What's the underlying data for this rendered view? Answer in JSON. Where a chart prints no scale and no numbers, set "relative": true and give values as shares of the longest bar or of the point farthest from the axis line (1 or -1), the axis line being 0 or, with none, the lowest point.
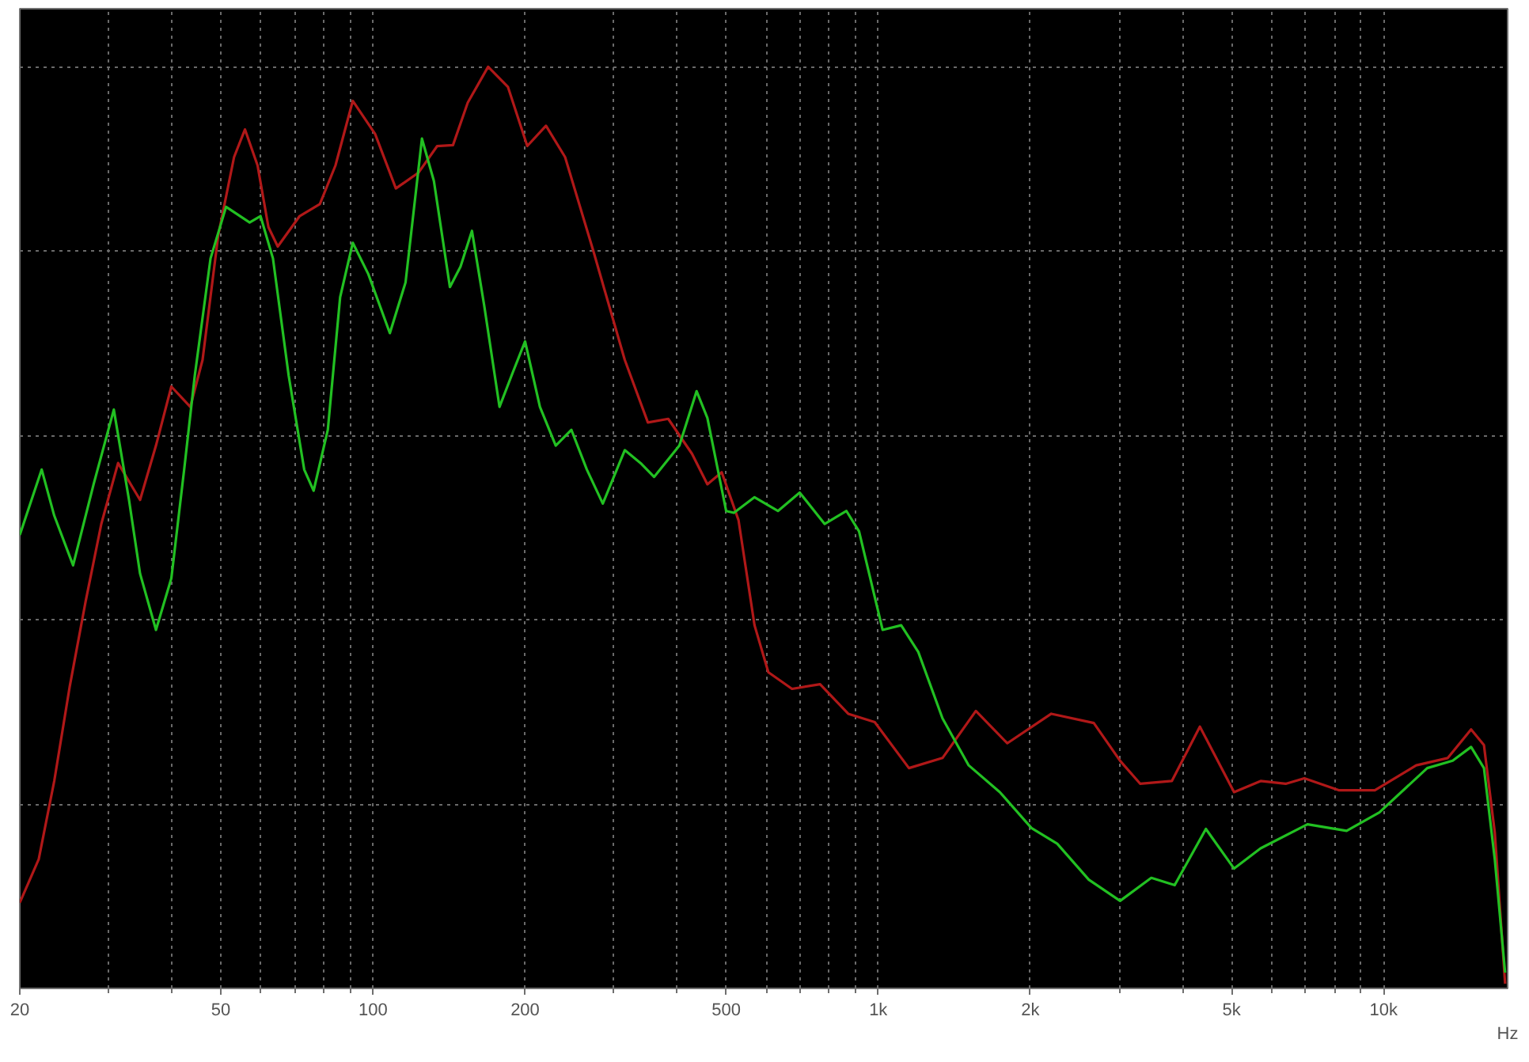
{
  "chart_data": {
    "type": "line",
    "relative": true,
    "log": "x",
    "grid": true,
    "line_style": "solid",
    "xlabel": "Hz",
    "xlim": [
      20,
      17600
    ],
    "xticks": [
      20,
      50,
      100,
      200,
      500,
      {
        "value": 1000,
        "label": "1k"
      },
      {
        "value": 2000,
        "label": "2k"
      },
      {
        "value": 5000,
        "label": "5k"
      },
      {
        "value": 10000,
        "label": "10k"
      }
    ],
    "series": [
      {
        "color": "#b01818",
        "x": [
          20,
          21.8,
          23.4,
          25.1,
          27.0,
          29.0,
          31.3,
          34.6,
          37.2,
          39.9,
          43.5,
          46.0,
          49.4,
          53.1,
          55.8,
          59.1,
          62.1,
          64.8,
          71.6,
          78.5,
          84.3,
          91.2,
          101,
          111,
          123,
          134,
          144,
          154,
          169,
          185,
          202,
          220,
          240,
          273,
          315,
          350,
          384,
          428,
          459,
          490,
          529,
          569,
          606,
          675,
          767,
          872,
          984,
          1150,
          1340,
          1560,
          1800,
          2200,
          2670,
          3010,
          3300,
          3810,
          4330,
          5060,
          5710,
          6400,
          6970,
          8150,
          9610,
          11600,
          13400,
          14900,
          15800,
          16600,
          17400
        ],
        "values": [
          0.093,
          0.14,
          0.225,
          0.327,
          0.42,
          0.504,
          0.57,
          0.53,
          0.589,
          0.653,
          0.631,
          0.682,
          0.817,
          0.902,
          0.932,
          0.893,
          0.826,
          0.805,
          0.838,
          0.851,
          0.893,
          0.963,
          0.927,
          0.868,
          0.885,
          0.914,
          0.915,
          0.961,
          1.0,
          0.978,
          0.914,
          0.936,
          0.902,
          0.8,
          0.682,
          0.614,
          0.618,
          0.58,
          0.547,
          0.56,
          0.508,
          0.394,
          0.343,
          0.325,
          0.33,
          0.298,
          0.289,
          0.239,
          0.25,
          0.301,
          0.266,
          0.298,
          0.288,
          0.247,
          0.222,
          0.225,
          0.284,
          0.213,
          0.225,
          0.222,
          0.228,
          0.215,
          0.215,
          0.242,
          0.25,
          0.281,
          0.264,
          0.169,
          0.005
        ]
      },
      {
        "color": "#22c022",
        "x": [
          20,
          22.1,
          23.4,
          25.5,
          28.0,
          30.7,
          32.9,
          34.6,
          37.2,
          39.9,
          42.3,
          44.4,
          47.7,
          51.2,
          57.0,
          59.9,
          63.4,
          68.1,
          73.1,
          76.3,
          81.4,
          86.1,
          91.2,
          97.9,
          108,
          116,
          125,
          132,
          142,
          149,
          157,
          166,
          178,
          189,
          200,
          214,
          230,
          247,
          265,
          285,
          315,
          340,
          360,
          404,
          437,
          459,
          500,
          518,
          569,
          633,
          699,
          783,
          865,
          916,
          1020,
          1110,
          1200,
          1340,
          1510,
          1740,
          2010,
          2260,
          2610,
          3010,
          3470,
          3860,
          4450,
          5060,
          5710,
          7070,
          8450,
          9810,
          12200,
          13700,
          14900,
          15800,
          16600,
          17400
        ],
        "values": [
          0.492,
          0.563,
          0.513,
          0.459,
          0.547,
          0.628,
          0.53,
          0.45,
          0.389,
          0.445,
          0.563,
          0.665,
          0.792,
          0.848,
          0.831,
          0.838,
          0.792,
          0.665,
          0.563,
          0.54,
          0.606,
          0.75,
          0.809,
          0.775,
          0.711,
          0.766,
          0.922,
          0.876,
          0.761,
          0.783,
          0.822,
          0.741,
          0.631,
          0.668,
          0.702,
          0.631,
          0.589,
          0.606,
          0.563,
          0.526,
          0.584,
          0.569,
          0.555,
          0.589,
          0.648,
          0.619,
          0.518,
          0.516,
          0.533,
          0.518,
          0.538,
          0.504,
          0.518,
          0.496,
          0.389,
          0.394,
          0.365,
          0.293,
          0.242,
          0.213,
          0.174,
          0.157,
          0.118,
          0.095,
          0.12,
          0.112,
          0.173,
          0.13,
          0.152,
          0.178,
          0.171,
          0.191,
          0.239,
          0.247,
          0.262,
          0.239,
          0.14,
          0.017
        ]
      }
    ]
  }
}
